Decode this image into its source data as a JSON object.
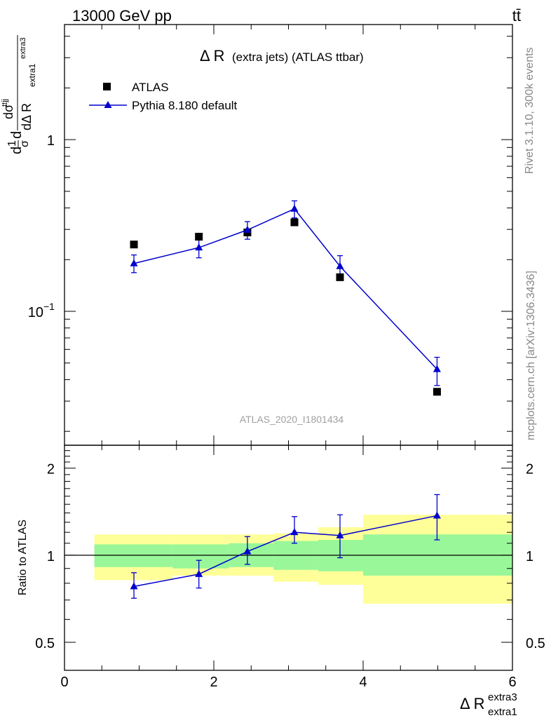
{
  "header": {
    "left": "13000 GeV pp",
    "right": "tt̄"
  },
  "main": {
    "title_prefix": "Δ R",
    "title_suffix": "(extra jets) (ATLAS ttbar)",
    "watermark": "ATLAS_2020_I1801434",
    "ylabel": "dσ/dΔR",
    "yticks": [
      {
        "value": 1,
        "label": "1"
      },
      {
        "value": 0.1,
        "label": "10",
        "exp": "−1"
      }
    ],
    "ylog": true,
    "ylim": [
      0.0166,
      4.68
    ]
  },
  "legend": {
    "atlas": "ATLAS",
    "pythia": "Pythia 8.180 default"
  },
  "side": {
    "rivet": "Rivet 3.1.10,  300k events",
    "mcplots": "mcplots.cern.ch [arXiv:1306.3436]"
  },
  "ratio": {
    "ylabel": "Ratio to ATLAS",
    "yticks": [
      {
        "value": 2,
        "label": "2"
      },
      {
        "value": 1,
        "label": "1"
      },
      {
        "value": 0.5,
        "label": "0.5"
      }
    ],
    "ylog": true,
    "ylim": [
      0.4,
      2.4
    ]
  },
  "xaxis": {
    "label_main": "Δ R",
    "label_sup": "extra3",
    "label_sub": "extra1",
    "xlim": [
      0,
      6
    ],
    "ticks": [
      {
        "value": 0,
        "label": "0"
      },
      {
        "value": 2,
        "label": "2"
      },
      {
        "value": 4,
        "label": "4"
      },
      {
        "value": 6,
        "label": "6"
      }
    ]
  },
  "colors": {
    "mc": "#0000cc",
    "band_inner": "#99f799",
    "band_outer": "#ffff99"
  },
  "chart_data": {
    "type": "scatter",
    "series": [
      {
        "name": "ATLAS",
        "x": [
          0.93,
          1.8,
          2.45,
          3.08,
          3.69,
          4.99
        ],
        "y": [
          0.245,
          0.272,
          0.288,
          0.33,
          0.158,
          0.034
        ]
      },
      {
        "name": "Pythia 8.180 default",
        "x": [
          0.93,
          1.8,
          2.45,
          3.08,
          3.69,
          4.99
        ],
        "y": [
          0.19,
          0.235,
          0.298,
          0.395,
          0.183,
          0.046
        ],
        "yerr_lo": [
          0.022,
          0.03,
          0.035,
          0.045,
          0.025,
          0.009
        ],
        "yerr_hi": [
          0.023,
          0.031,
          0.035,
          0.045,
          0.028,
          0.008
        ]
      }
    ],
    "ratio": {
      "x": [
        0.93,
        1.8,
        2.45,
        3.08,
        3.69,
        4.99
      ],
      "mc": [
        0.78,
        0.86,
        1.03,
        1.2,
        1.17,
        1.37
      ],
      "mc_err_lo": [
        0.07,
        0.09,
        0.1,
        0.1,
        0.19,
        0.24
      ],
      "mc_err_hi": [
        0.09,
        0.1,
        0.13,
        0.16,
        0.21,
        0.25
      ],
      "bands": [
        {
          "x0": 0.4,
          "x1": 1.45,
          "inner_lo": 0.91,
          "inner_hi": 1.09,
          "outer_lo": 0.82,
          "outer_hi": 1.18
        },
        {
          "x0": 1.45,
          "x1": 2.2,
          "inner_lo": 0.9,
          "inner_hi": 1.09,
          "outer_lo": 0.85,
          "outer_hi": 1.18
        },
        {
          "x0": 2.2,
          "x1": 2.8,
          "inner_lo": 0.91,
          "inner_hi": 1.1,
          "outer_lo": 0.85,
          "outer_hi": 1.18
        },
        {
          "x0": 2.8,
          "x1": 3.4,
          "inner_lo": 0.89,
          "inner_hi": 1.12,
          "outer_lo": 0.81,
          "outer_hi": 1.19
        },
        {
          "x0": 3.4,
          "x1": 4.0,
          "inner_lo": 0.88,
          "inner_hi": 1.13,
          "outer_lo": 0.79,
          "outer_hi": 1.25
        },
        {
          "x0": 4.0,
          "x1": 6.0,
          "inner_lo": 0.85,
          "inner_hi": 1.18,
          "outer_lo": 0.68,
          "outer_hi": 1.38
        }
      ]
    }
  }
}
